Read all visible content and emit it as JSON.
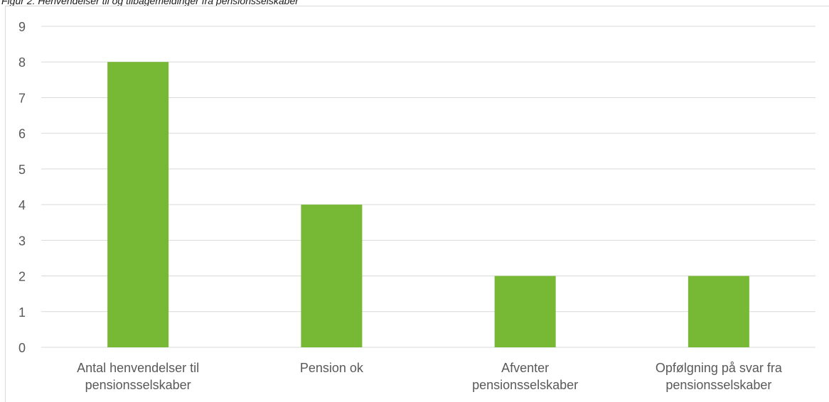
{
  "caption": "Figur 2: Henvendelser til og tilbagemeldinger fra pensionsselskaber",
  "chart_data": {
    "type": "bar",
    "title": "",
    "xlabel": "",
    "ylabel": "",
    "categories": [
      [
        "Antal henvendelser til",
        "pensionsselskaber"
      ],
      [
        "Pension ok"
      ],
      [
        "Afventer",
        "pensionsselskaber"
      ],
      [
        "Opfølgning på svar fra",
        "pensionsselskaber"
      ]
    ],
    "values": [
      8,
      4,
      2,
      2
    ],
    "ylim": [
      0,
      9
    ],
    "yticks": [
      "0",
      "1",
      "2",
      "3",
      "4",
      "5",
      "6",
      "7",
      "8",
      "9"
    ],
    "grid": true,
    "legend": "none",
    "bar_color": "#77b834",
    "grid_color": "#d9d9d9",
    "axis_text_color": "#595959"
  }
}
